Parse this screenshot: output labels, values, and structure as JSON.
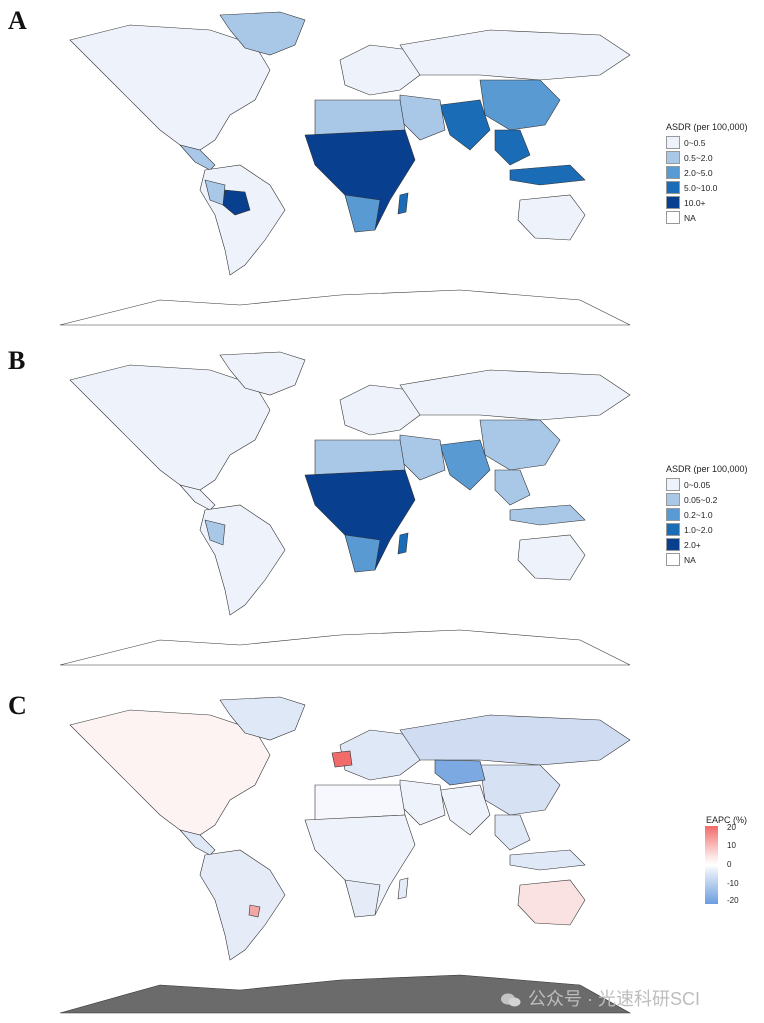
{
  "panels": [
    {
      "label": "A",
      "legend_title": "ASDR (per 100,000)",
      "legend": [
        {
          "label": "0~0.5",
          "color": "#eef2fb"
        },
        {
          "label": "0.5~2.0",
          "color": "#a9c8e8"
        },
        {
          "label": "2.0~5.0",
          "color": "#5a9ad2"
        },
        {
          "label": "5.0~10.0",
          "color": "#1b6cb6"
        },
        {
          "label": "10.0+",
          "color": "#08408f"
        },
        {
          "label": "NA",
          "color": "#ffffff"
        }
      ]
    },
    {
      "label": "B",
      "legend_title": "ASDR (per 100,000)",
      "legend": [
        {
          "label": "0~0.05",
          "color": "#eef2fb"
        },
        {
          "label": "0.05~0.2",
          "color": "#a9c8e8"
        },
        {
          "label": "0.2~1.0",
          "color": "#5a9ad2"
        },
        {
          "label": "1.0~2.0",
          "color": "#1b6cb6"
        },
        {
          "label": "2.0+",
          "color": "#08408f"
        },
        {
          "label": "NA",
          "color": "#ffffff"
        }
      ]
    },
    {
      "label": "C",
      "legend_title": "EAPC (%)",
      "colorbar": {
        "ticks": [
          "20",
          "10",
          "0",
          "-10",
          "-20"
        ],
        "range": [
          -20,
          20
        ],
        "low_color": "#6a9ee0",
        "mid_color": "#ffffff",
        "high_color": "#f26b6b"
      }
    }
  ],
  "map_colors": {
    "background_land": "#eef2fb",
    "antarctica_c": "#6b6b6b",
    "outline": "#333333"
  },
  "watermark": "公众号 · 光速科研SCI",
  "icons": {
    "watermark_icon": "wechat-icon"
  }
}
